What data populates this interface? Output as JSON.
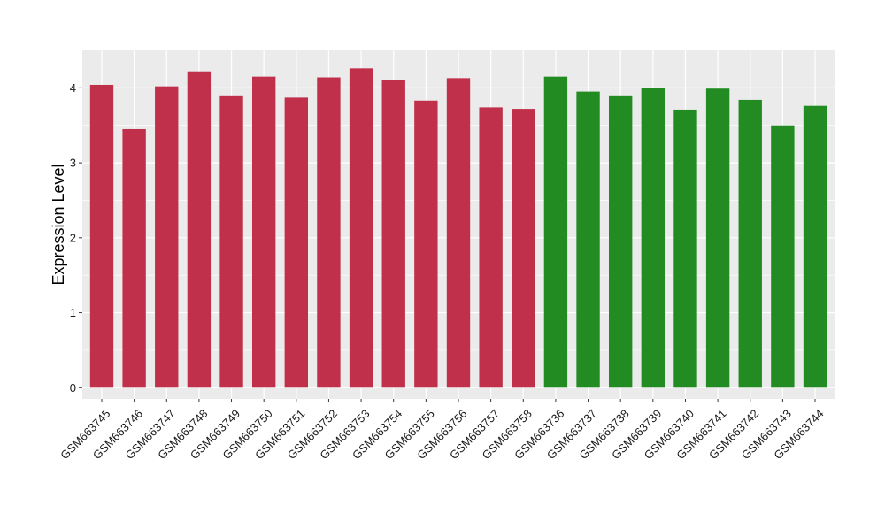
{
  "chart_data": {
    "type": "bar",
    "title": "",
    "xlabel": "",
    "ylabel": "Expression Level",
    "ylim": [
      -0.15,
      4.5
    ],
    "yticks": [
      0,
      1,
      2,
      3,
      4
    ],
    "grid": true,
    "legend": "none",
    "categories": [
      "GSM663745",
      "GSM663746",
      "GSM663747",
      "GSM663748",
      "GSM663749",
      "GSM663750",
      "GSM663751",
      "GSM663752",
      "GSM663753",
      "GSM663754",
      "GSM663755",
      "GSM663756",
      "GSM663757",
      "GSM663758",
      "GSM663736",
      "GSM663737",
      "GSM663738",
      "GSM663739",
      "GSM663740",
      "GSM663741",
      "GSM663742",
      "GSM663743",
      "GSM663744"
    ],
    "values": [
      4.04,
      3.45,
      4.02,
      4.22,
      3.9,
      4.15,
      3.87,
      4.14,
      4.26,
      4.1,
      3.83,
      4.13,
      3.74,
      3.72,
      4.15,
      3.95,
      3.9,
      4.0,
      3.71,
      3.99,
      3.84,
      3.5,
      3.76
    ],
    "bar_colors": [
      "#C0304A",
      "#C0304A",
      "#C0304A",
      "#C0304A",
      "#C0304A",
      "#C0304A",
      "#C0304A",
      "#C0304A",
      "#C0304A",
      "#C0304A",
      "#C0304A",
      "#C0304A",
      "#C0304A",
      "#C0304A",
      "#228B22",
      "#228B22",
      "#228B22",
      "#228B22",
      "#228B22",
      "#228B22",
      "#228B22",
      "#228B22",
      "#228B22"
    ],
    "panel_background": "#EBEBEB",
    "grid_color": "#FFFFFF"
  }
}
